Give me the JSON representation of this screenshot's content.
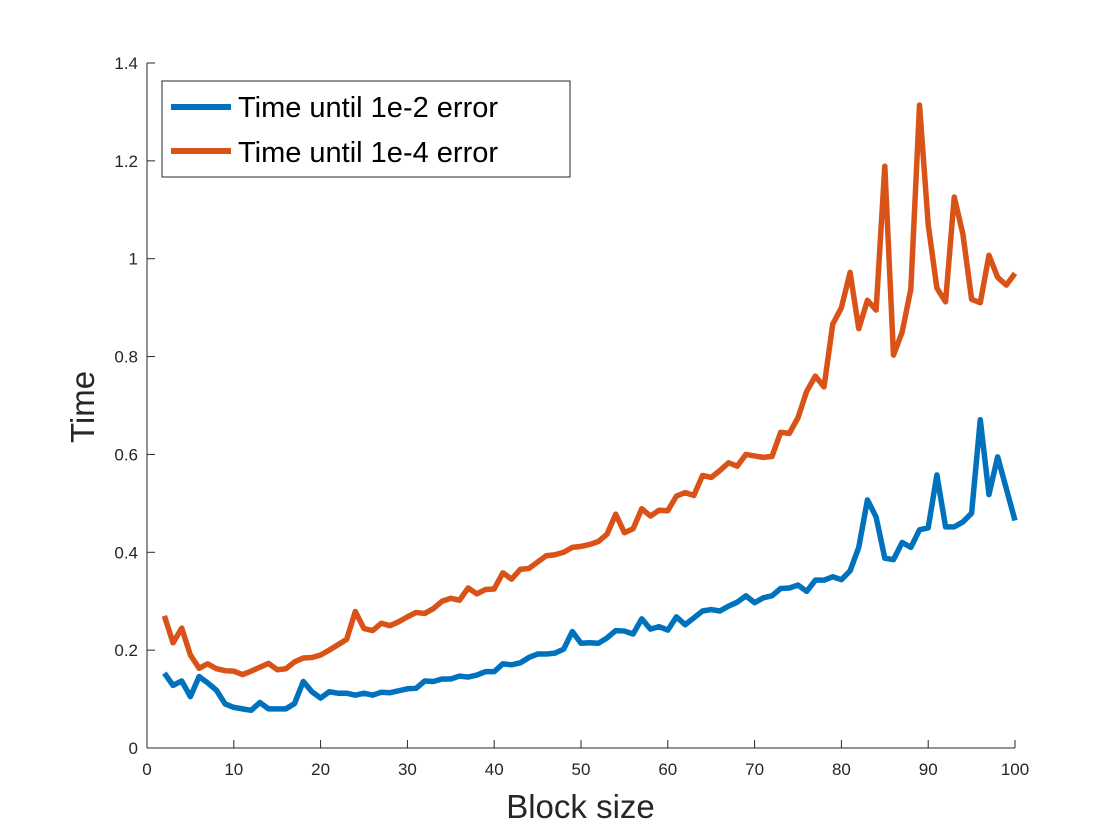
{
  "chart_data": {
    "type": "line",
    "xlabel": "Block size",
    "ylabel": "Time",
    "xlim": [
      0,
      100
    ],
    "ylim": [
      0,
      1.4
    ],
    "xticks": [
      0,
      10,
      20,
      30,
      40,
      50,
      60,
      70,
      80,
      90,
      100
    ],
    "xtick_labels": [
      "0",
      "10",
      "20",
      "30",
      "40",
      "50",
      "60",
      "70",
      "80",
      "90",
      "100"
    ],
    "yticks": [
      0,
      0.2,
      0.4,
      0.6,
      0.8,
      1,
      1.2,
      1.4
    ],
    "ytick_labels": [
      "0",
      "0.2",
      "0.4",
      "0.6",
      "0.8",
      "1",
      "1.2",
      "1.4"
    ],
    "grid": false,
    "legend_position": "top-left",
    "x": [
      2,
      3,
      4,
      5,
      6,
      7,
      8,
      9,
      10,
      11,
      12,
      13,
      14,
      15,
      16,
      17,
      18,
      19,
      20,
      21,
      22,
      23,
      24,
      25,
      26,
      27,
      28,
      29,
      30,
      31,
      32,
      33,
      34,
      35,
      36,
      37,
      38,
      39,
      40,
      41,
      42,
      43,
      44,
      45,
      46,
      47,
      48,
      49,
      50,
      51,
      52,
      53,
      54,
      55,
      56,
      57,
      58,
      59,
      60,
      61,
      62,
      63,
      64,
      65,
      66,
      67,
      68,
      69,
      70,
      71,
      72,
      73,
      74,
      75,
      76,
      77,
      78,
      79,
      80,
      81,
      82,
      83,
      84,
      85,
      86,
      87,
      88,
      89,
      90,
      91,
      92,
      93,
      94,
      95,
      96,
      97,
      98,
      99,
      100
    ],
    "series": [
      {
        "name": "Time until 1e-2 error",
        "color": "#0072BD",
        "values": [
          0.153,
          0.128,
          0.137,
          0.105,
          0.146,
          0.133,
          0.118,
          0.09,
          0.083,
          0.08,
          0.077,
          0.093,
          0.08,
          0.08,
          0.08,
          0.091,
          0.136,
          0.115,
          0.102,
          0.115,
          0.112,
          0.112,
          0.108,
          0.112,
          0.108,
          0.114,
          0.113,
          0.117,
          0.121,
          0.122,
          0.137,
          0.136,
          0.141,
          0.141,
          0.147,
          0.145,
          0.149,
          0.156,
          0.156,
          0.172,
          0.17,
          0.174,
          0.185,
          0.192,
          0.192,
          0.194,
          0.202,
          0.238,
          0.214,
          0.215,
          0.214,
          0.225,
          0.24,
          0.239,
          0.233,
          0.264,
          0.243,
          0.248,
          0.241,
          0.268,
          0.252,
          0.266,
          0.28,
          0.283,
          0.28,
          0.29,
          0.298,
          0.311,
          0.297,
          0.307,
          0.311,
          0.326,
          0.327,
          0.333,
          0.32,
          0.343,
          0.343,
          0.35,
          0.344,
          0.362,
          0.41,
          0.507,
          0.472,
          0.388,
          0.385,
          0.42,
          0.41,
          0.446,
          0.45,
          0.558,
          0.452,
          0.452,
          0.462,
          0.48,
          0.671,
          0.518,
          0.595,
          0.53,
          0.465
        ]
      },
      {
        "name": "Time until 1e-4 error",
        "color": "#D95319",
        "values": [
          0.27,
          0.215,
          0.245,
          0.19,
          0.163,
          0.172,
          0.162,
          0.158,
          0.157,
          0.15,
          0.157,
          0.165,
          0.173,
          0.16,
          0.162,
          0.176,
          0.184,
          0.185,
          0.19,
          0.2,
          0.211,
          0.222,
          0.279,
          0.244,
          0.24,
          0.255,
          0.25,
          0.258,
          0.268,
          0.277,
          0.275,
          0.285,
          0.3,
          0.306,
          0.302,
          0.327,
          0.315,
          0.324,
          0.325,
          0.358,
          0.345,
          0.365,
          0.367,
          0.38,
          0.393,
          0.395,
          0.4,
          0.41,
          0.412,
          0.416,
          0.422,
          0.437,
          0.478,
          0.44,
          0.448,
          0.489,
          0.474,
          0.486,
          0.485,
          0.515,
          0.522,
          0.516,
          0.557,
          0.553,
          0.567,
          0.583,
          0.576,
          0.6,
          0.597,
          0.594,
          0.596,
          0.645,
          0.643,
          0.675,
          0.729,
          0.76,
          0.738,
          0.866,
          0.9,
          0.972,
          0.857,
          0.915,
          0.895,
          1.189,
          0.803,
          0.85,
          0.938,
          1.314,
          1.07,
          0.94,
          0.912,
          1.126,
          1.05,
          0.917,
          0.91,
          1.007,
          0.962,
          0.946,
          0.97
        ]
      }
    ]
  }
}
